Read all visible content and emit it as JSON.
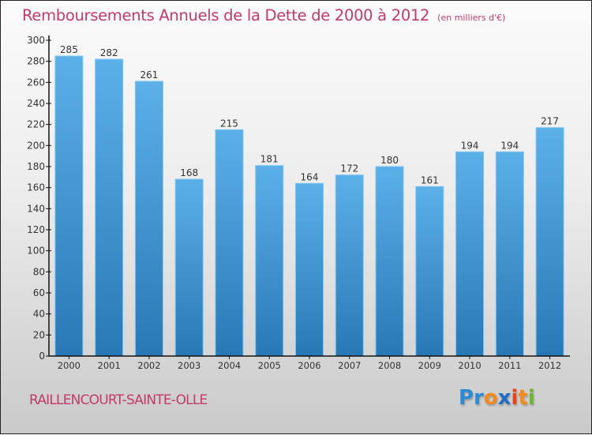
{
  "header": {
    "title": "Remboursements Annuels de la Dette de 2000 à 2012",
    "unit_note": "(en milliers d'€)"
  },
  "footer": {
    "commune": "RAILLENCOURT-SAINTE-OLLE",
    "logo": {
      "letters": [
        {
          "ch": "P",
          "color": "#2a8bd6"
        },
        {
          "ch": "r",
          "color": "#2a8bd6"
        },
        {
          "ch": "o",
          "color": "#f28a1e"
        },
        {
          "ch": "x",
          "color": "#1f6fc4"
        },
        {
          "ch": "i",
          "color": "#e8441a"
        },
        {
          "ch": "t",
          "color": "#f28a1e"
        },
        {
          "ch": "i",
          "color": "#6ab82e"
        }
      ],
      "text": "Proxiti"
    }
  },
  "colors": {
    "title": "#c23a6b",
    "bar_top": "#5cb0e8",
    "bar_bottom": "#2878b5",
    "bar_edge": "#7cc4f2",
    "axis": "#111111",
    "label": "#333333"
  },
  "chart_data": {
    "type": "bar",
    "title": "Remboursements Annuels de la Dette de 2000 à 2012",
    "subtitle": "(en milliers d'€)",
    "xlabel": "",
    "ylabel": "",
    "categories": [
      "2000",
      "2001",
      "2002",
      "2003",
      "2004",
      "2005",
      "2006",
      "2007",
      "2008",
      "2009",
      "2010",
      "2011",
      "2012"
    ],
    "values": [
      285,
      282,
      261,
      168,
      215,
      181,
      164,
      172,
      180,
      161,
      194,
      194,
      217
    ],
    "data_labels": [
      "285",
      "282",
      "261",
      "168",
      "215",
      "181",
      "164",
      "172",
      "180",
      "161",
      "194",
      "194",
      "217"
    ],
    "ylim": [
      0,
      300
    ],
    "yticks": [
      0,
      20,
      40,
      60,
      80,
      100,
      120,
      140,
      160,
      180,
      200,
      220,
      240,
      260,
      280,
      300
    ],
    "grid": false,
    "legend": "none"
  }
}
